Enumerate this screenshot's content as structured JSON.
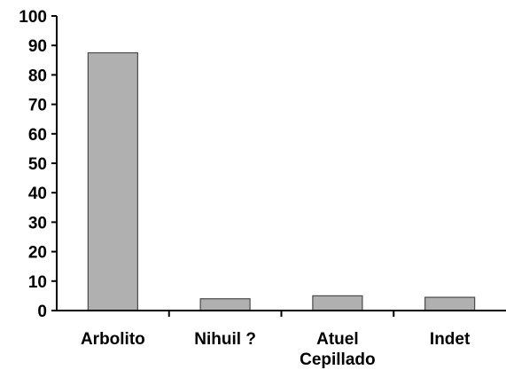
{
  "chart_data": {
    "type": "bar",
    "categories": [
      [
        "Arbolito"
      ],
      [
        "Nihuil ?"
      ],
      [
        "Atuel",
        "Cepillado"
      ],
      [
        "Indet"
      ]
    ],
    "values": [
      87.5,
      4,
      5,
      4.5
    ],
    "ylim": [
      0,
      100
    ],
    "yticks": [
      0,
      10,
      20,
      30,
      40,
      50,
      60,
      70,
      80,
      90,
      100
    ],
    "grid": false,
    "legend": "none",
    "title": "",
    "xlabel": "",
    "ylabel": "",
    "colors": {
      "bar_fill": "#b0b0b0",
      "bar_stroke": "#4a4a4a",
      "axis": "#000000"
    }
  }
}
